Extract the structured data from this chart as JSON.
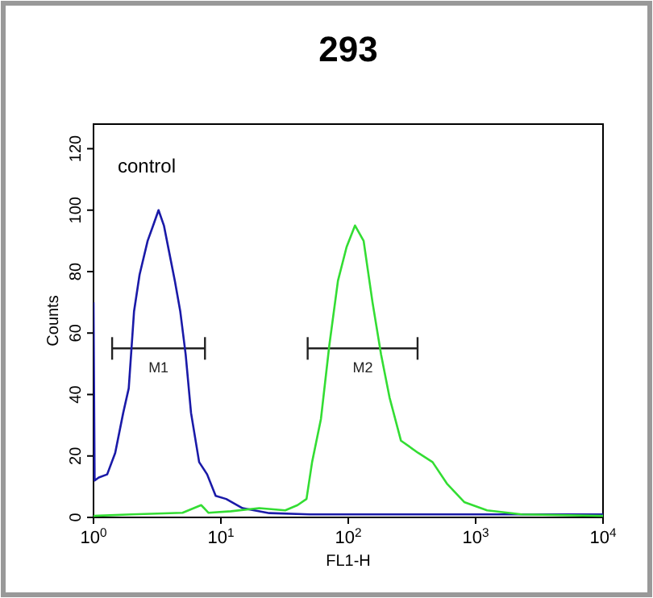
{
  "chart_data": {
    "type": "line",
    "title": "293",
    "xlabel": "FL1-H",
    "ylabel": "Counts",
    "log": "x",
    "xlim": [
      1,
      10000
    ],
    "ylim": [
      0,
      128
    ],
    "xticks": [
      {
        "value": 1,
        "label": "10$^{0}$"
      },
      {
        "value": 10,
        "label": "10$^{1}$"
      },
      {
        "value": 100,
        "label": "10$^{2}$"
      },
      {
        "value": 1000,
        "label": "10$^{3}$"
      },
      {
        "value": 10000,
        "label": "10$^{4}$"
      }
    ],
    "yticks": [
      0,
      20,
      40,
      60,
      80,
      100,
      120
    ],
    "grid": false,
    "marker": "none",
    "line_style": "solid",
    "annotations": [
      "control",
      {
        "text": "M1",
        "x": 3.24,
        "y": 55
      },
      {
        "text": "M2",
        "x": 130,
        "y": 55
      }
    ],
    "series": [
      {
        "color": "#222222",
        "x": [
          1.4,
          7.5
        ],
        "values": [
          55,
          55
        ]
      },
      {
        "color": "#222222",
        "x": [
          48,
          350
        ],
        "values": [
          55,
          55
        ]
      },
      {
        "color": "#1a1aa8",
        "x": [
          1,
          1.02,
          1.1,
          1.28,
          1.48,
          1.71,
          1.89,
          2.08,
          2.3,
          2.66,
          2.94,
          3.24,
          3.57,
          3.94,
          4.35,
          4.8,
          5.29,
          5.83,
          6.75,
          7.8,
          9.1,
          11,
          14.8,
          24,
          50,
          100,
          300,
          1000,
          3000,
          10000
        ],
        "values": [
          70,
          12,
          13,
          14,
          21,
          34,
          42,
          67,
          79,
          90,
          95,
          100,
          95,
          86,
          77,
          67,
          53,
          34,
          18,
          14,
          7,
          6,
          3,
          1.4,
          1,
          1,
          1,
          1,
          1,
          1
        ]
      },
      {
        "color": "#33dd33",
        "x": [
          1,
          2,
          5,
          7,
          8,
          12,
          20,
          32,
          40,
          47,
          52,
          61,
          71,
          83,
          97,
          113,
          132,
          155,
          181,
          211,
          259,
          354,
          459,
          595,
          813,
          1230,
          2300,
          10000
        ],
        "values": [
          0.5,
          1,
          1.5,
          4,
          1.5,
          2,
          3,
          2.3,
          4,
          6,
          18,
          32,
          56,
          77,
          88,
          95,
          90,
          70,
          53,
          39,
          25,
          21,
          18,
          11,
          5,
          2.3,
          1,
          0.5
        ]
      }
    ]
  }
}
